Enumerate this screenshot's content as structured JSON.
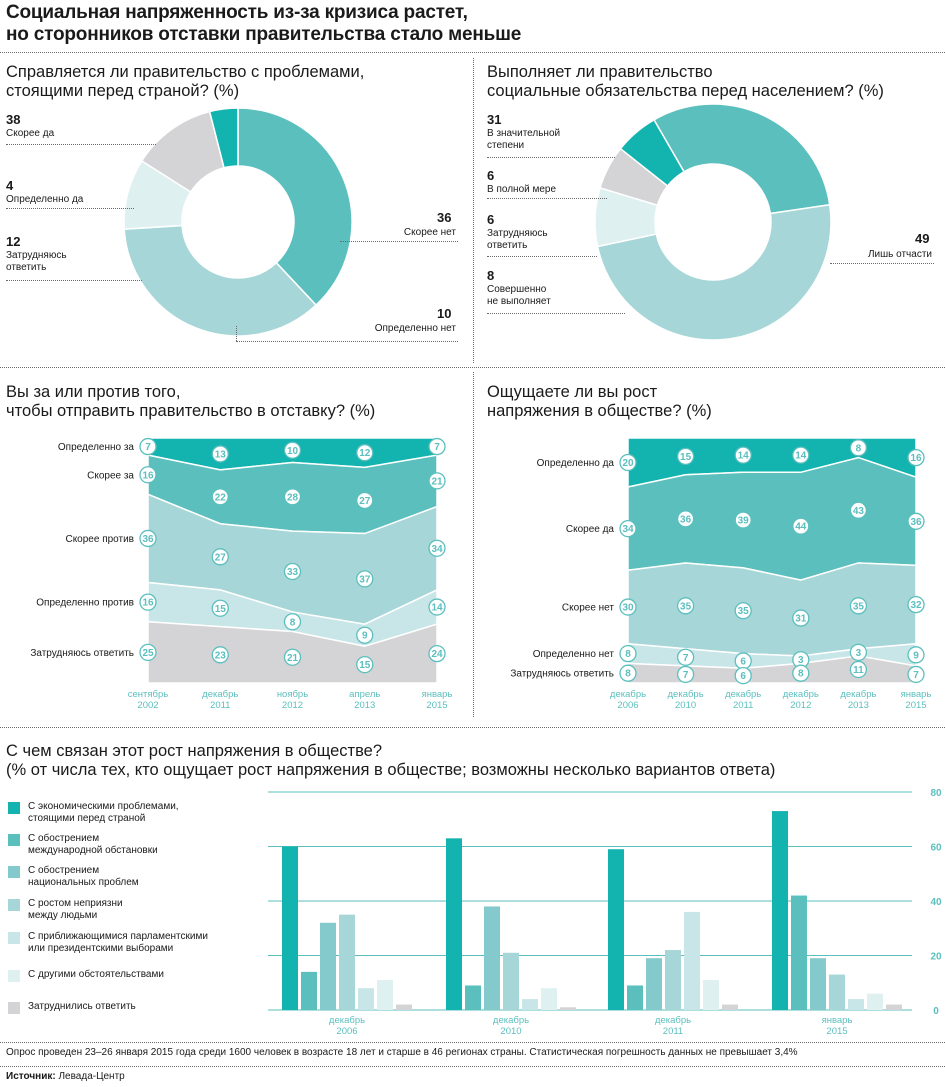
{
  "title_line1": "Социальная напряженность из-за кризиса растет,",
  "title_line2": "но сторонников отставки правительства стало меньше",
  "colors": {
    "teal_dark": "#13b3b0",
    "teal": "#5bbfbe",
    "teal_mid": "#84c9cb",
    "teal_light": "#a6d6d8",
    "teal_pale": "#c8e6e8",
    "teal_paler": "#dff0f1",
    "gray": "#d4d4d6"
  },
  "chart_data": [
    {
      "type": "pie",
      "title_line1": "Справляется ли правительство с проблемами,",
      "title_line2": "стоящими перед страной? (%)",
      "slices": [
        {
          "label": "Скорее да",
          "value": 38
        },
        {
          "label": "Скорее нет",
          "value": 36
        },
        {
          "label": "Определенно нет",
          "value": 10
        },
        {
          "label_line1": "Затрудняюсь",
          "label_line2": "ответить",
          "value": 12
        },
        {
          "label": "Определенно да",
          "value": 4
        }
      ]
    },
    {
      "type": "pie",
      "title_line1": "Выполняет ли правительство",
      "title_line2": "социальные обязательства перед населением? (%)",
      "slices": [
        {
          "label_line1": "В значительной",
          "label_line2": "степени",
          "value": 31
        },
        {
          "label": "Лишь отчасти",
          "value": 49
        },
        {
          "label_line1": "Совершенно",
          "label_line2": "не выполняет",
          "value": 8
        },
        {
          "label_line1": "Затрудняюсь",
          "label_line2": "ответить",
          "value": 6
        },
        {
          "label": "В полной мере",
          "value": 6
        }
      ]
    },
    {
      "type": "area",
      "title_line1": "Вы за или против того,",
      "title_line2": "чтобы отправить правительство в отставку? (%)",
      "x_labels": [
        [
          "сентябрь",
          "2002"
        ],
        [
          "декабрь",
          "2011"
        ],
        [
          "ноябрь",
          "2012"
        ],
        [
          "апрель",
          "2013"
        ],
        [
          "январь",
          "2015"
        ]
      ],
      "series": [
        {
          "name": "Определенно за",
          "values": [
            7,
            13,
            10,
            12,
            7
          ]
        },
        {
          "name": "Скорее за",
          "values": [
            16,
            22,
            28,
            27,
            21
          ]
        },
        {
          "name": "Скорее против",
          "values": [
            36,
            27,
            33,
            37,
            34
          ]
        },
        {
          "name": "Определенно против",
          "values": [
            16,
            15,
            8,
            9,
            14
          ]
        },
        {
          "name": "Затрудняюсь ответить",
          "values": [
            25,
            23,
            21,
            15,
            24
          ]
        }
      ]
    },
    {
      "type": "area",
      "title_line1": "Ощущаете ли вы рост",
      "title_line2": "напряжения в обществе? (%)",
      "x_labels": [
        [
          "декабрь",
          "2006"
        ],
        [
          "декабрь",
          "2010"
        ],
        [
          "декабрь",
          "2011"
        ],
        [
          "декабрь",
          "2012"
        ],
        [
          "декабрь",
          "2013"
        ],
        [
          "январь",
          "2015"
        ]
      ],
      "series": [
        {
          "name": "Определенно да",
          "values": [
            20,
            15,
            14,
            14,
            8,
            16
          ]
        },
        {
          "name": "Скорее да",
          "values": [
            34,
            36,
            39,
            44,
            43,
            36
          ]
        },
        {
          "name": "Скорее нет",
          "values": [
            30,
            35,
            35,
            31,
            35,
            32
          ]
        },
        {
          "name": "Определенно нет",
          "values": [
            8,
            7,
            6,
            3,
            3,
            9
          ]
        },
        {
          "name": "Затрудняюсь ответить",
          "values": [
            8,
            7,
            6,
            8,
            11,
            7
          ]
        }
      ]
    },
    {
      "type": "bar",
      "title_line1": "С чем связан этот рост напряжения в обществе?",
      "title_line2": "(% от числа тех, кто ощущает рост напряжения в обществе; возможны несколько вариантов ответа)",
      "ylim": [
        0,
        80
      ],
      "y_ticks": [
        0,
        20,
        40,
        60,
        80
      ],
      "groups": [
        [
          "декабрь",
          "2006"
        ],
        [
          "декабрь",
          "2010"
        ],
        [
          "декабрь",
          "2011"
        ],
        [
          "январь",
          "2015"
        ]
      ],
      "series": [
        {
          "name_line1": "С экономическими проблемами,",
          "name_line2": "стоящими перед страной",
          "values": [
            60,
            63,
            59,
            73
          ]
        },
        {
          "name_line1": "С обострением",
          "name_line2": "международной обстановки",
          "values": [
            14,
            9,
            9,
            42
          ]
        },
        {
          "name_line1": "С обострением",
          "name_line2": "национальных проблем",
          "values": [
            32,
            38,
            19,
            19
          ]
        },
        {
          "name_line1": "С ростом неприязни",
          "name_line2": "между людьми",
          "values": [
            35,
            21,
            22,
            13
          ]
        },
        {
          "name_line1": "С приближающимися парламентскими",
          "name_line2": "или президентскими выборами",
          "values": [
            8,
            4,
            36,
            4
          ]
        },
        {
          "name_line1": "С другими обстоятельствами",
          "name_line2": "",
          "values": [
            11,
            8,
            11,
            6
          ]
        },
        {
          "name_line1": "Затруднились ответить",
          "name_line2": "",
          "values": [
            2,
            1,
            2,
            2
          ]
        }
      ]
    }
  ],
  "footnote": "Опрос проведен 23–26 января 2015 года среди 1600 человек в возрасте 18 лет и старше в 46 регионах страны. Статистическая погрешность данных не превышает 3,4%",
  "source_label": "Источник:",
  "source_value": "Левада-Центр"
}
